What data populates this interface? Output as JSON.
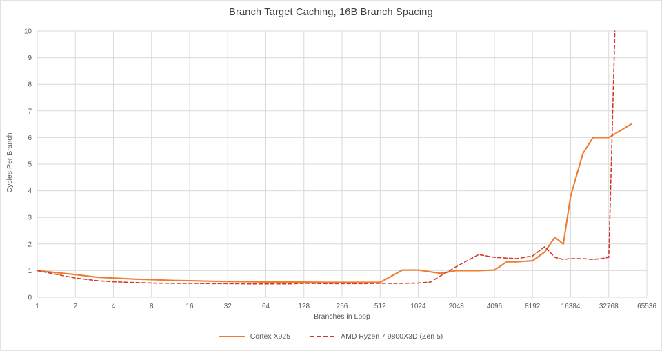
{
  "chart_data": {
    "type": "line",
    "title": "Branch Target Caching, 16B Branch Spacing",
    "xlabel": "Branches in Loop",
    "ylabel": "Cycles Per Branch",
    "x_scale": "log2",
    "xlim": [
      1,
      65536
    ],
    "ylim": [
      0,
      10
    ],
    "x_ticks": [
      1,
      2,
      4,
      8,
      16,
      32,
      64,
      128,
      256,
      512,
      1024,
      2048,
      4096,
      8192,
      16384,
      32768,
      65536
    ],
    "y_ticks": [
      0,
      1,
      2,
      3,
      4,
      5,
      6,
      7,
      8,
      9,
      10
    ],
    "grid": true,
    "legend_position": "bottom",
    "note": "red series spikes off-scale (clipped at y=10) just past 32768; orange series ends near 49152",
    "series": [
      {
        "name": "Cortex X925",
        "color": "#ED7D31",
        "line_style": "solid",
        "points": [
          [
            1,
            1.0
          ],
          [
            2,
            0.85
          ],
          [
            3,
            0.75
          ],
          [
            4,
            0.72
          ],
          [
            6,
            0.68
          ],
          [
            8,
            0.66
          ],
          [
            12,
            0.63
          ],
          [
            16,
            0.62
          ],
          [
            24,
            0.6
          ],
          [
            32,
            0.59
          ],
          [
            48,
            0.58
          ],
          [
            64,
            0.57
          ],
          [
            96,
            0.57
          ],
          [
            128,
            0.57
          ],
          [
            192,
            0.56
          ],
          [
            256,
            0.56
          ],
          [
            384,
            0.56
          ],
          [
            512,
            0.56
          ],
          [
            768,
            1.02
          ],
          [
            1024,
            1.02
          ],
          [
            1536,
            0.9
          ],
          [
            2048,
            1.0
          ],
          [
            3072,
            1.0
          ],
          [
            4096,
            1.02
          ],
          [
            5120,
            1.33
          ],
          [
            6144,
            1.33
          ],
          [
            8192,
            1.37
          ],
          [
            10240,
            1.7
          ],
          [
            12288,
            2.25
          ],
          [
            14336,
            2.0
          ],
          [
            16384,
            3.8
          ],
          [
            20480,
            5.4
          ],
          [
            24576,
            6.0
          ],
          [
            28672,
            6.0
          ],
          [
            32768,
            6.0
          ],
          [
            49152,
            6.5
          ]
        ]
      },
      {
        "name": "AMD Ryzen 7 9800X3D (Zen 5)",
        "color": "#D03A2B",
        "line_style": "dashed",
        "points": [
          [
            1,
            1.0
          ],
          [
            2,
            0.72
          ],
          [
            3,
            0.62
          ],
          [
            4,
            0.58
          ],
          [
            6,
            0.55
          ],
          [
            8,
            0.53
          ],
          [
            12,
            0.52
          ],
          [
            16,
            0.52
          ],
          [
            24,
            0.51
          ],
          [
            32,
            0.51
          ],
          [
            48,
            0.5
          ],
          [
            64,
            0.5
          ],
          [
            96,
            0.5
          ],
          [
            128,
            0.52
          ],
          [
            192,
            0.51
          ],
          [
            256,
            0.51
          ],
          [
            384,
            0.51
          ],
          [
            512,
            0.52
          ],
          [
            768,
            0.52
          ],
          [
            1024,
            0.53
          ],
          [
            1280,
            0.57
          ],
          [
            1536,
            0.8
          ],
          [
            2048,
            1.15
          ],
          [
            3072,
            1.6
          ],
          [
            4096,
            1.5
          ],
          [
            5120,
            1.47
          ],
          [
            6144,
            1.45
          ],
          [
            8192,
            1.55
          ],
          [
            10240,
            1.9
          ],
          [
            12288,
            1.5
          ],
          [
            14336,
            1.42
          ],
          [
            16384,
            1.45
          ],
          [
            20480,
            1.45
          ],
          [
            24576,
            1.42
          ],
          [
            28672,
            1.45
          ],
          [
            32768,
            1.5
          ],
          [
            36864,
            10.4
          ]
        ]
      }
    ]
  },
  "styles": {
    "grid_color": "#D9D9D9",
    "tick_color": "#595959",
    "title_color": "#3F3F3F",
    "background": "#FFFFFF"
  }
}
